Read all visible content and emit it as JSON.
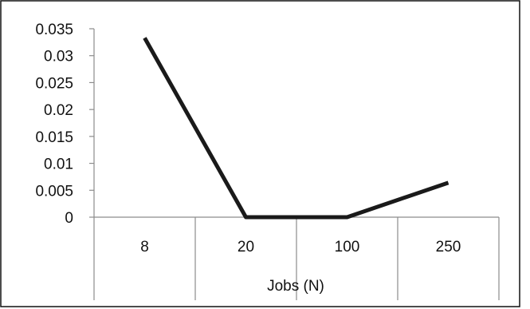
{
  "chart_data": {
    "type": "line",
    "categories": [
      "8",
      "20",
      "100",
      "250"
    ],
    "series": [
      {
        "values": [
          0.0333,
          0.0,
          0.0,
          0.0064
        ]
      }
    ],
    "xlabel": "Jobs (N)",
    "ylabel": "",
    "ylim": [
      0,
      0.035
    ],
    "yticks": [
      "0",
      "0.005",
      "0.01",
      "0.015",
      "0.02",
      "0.025",
      "0.03",
      "0.035"
    ],
    "grid": false,
    "legend": "none",
    "line_color": "#1a1a1a"
  }
}
